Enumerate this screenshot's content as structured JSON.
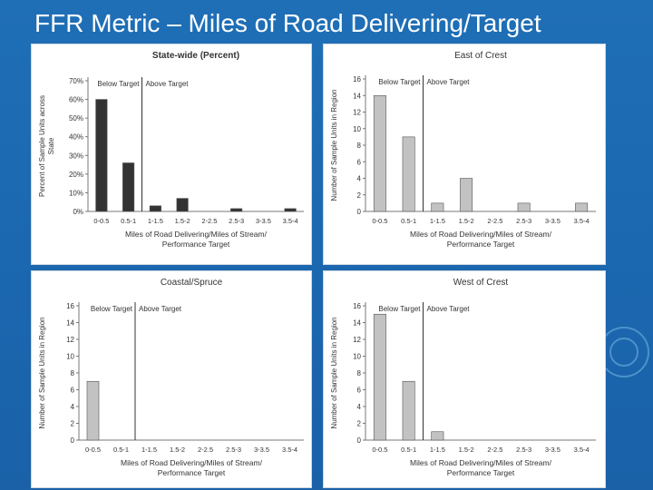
{
  "slide": {
    "title": "FFR Metric – Miles of Road Delivering/Target"
  },
  "colors": {
    "dark_bar": "#333333",
    "light_bar": "#c2c2c2",
    "target_line": "#333333",
    "background": "#1f6fb6"
  },
  "chart_data": [
    {
      "type": "bar",
      "title": "State-wide (Percent)",
      "xlabel": "Miles of Road Delivering/Miles of Stream/Performance Target",
      "ylabel": "Percent of Sample Units across State",
      "categories": [
        "0-0.5",
        "0.5-1",
        "1-1.5",
        "1.5-2",
        "2-2.5",
        "2.5-3",
        "3-3.5",
        "3.5-4"
      ],
      "values": [
        60,
        26,
        3,
        7,
        0,
        1.5,
        0,
        1.5
      ],
      "yticks": [
        "0%",
        "10%",
        "20%",
        "30%",
        "40%",
        "50%",
        "60%",
        "70%"
      ],
      "ylim": [
        0,
        70
      ],
      "target_labels": {
        "below": "Below Target",
        "above": "Above Target"
      },
      "bar_color": "#333333",
      "grid": false
    },
    {
      "type": "bar",
      "title": "East of Crest",
      "xlabel": "Miles of Road Delivering/Miles of Stream/Performance Target",
      "ylabel": "Number of Sample Units in Region",
      "categories": [
        "0-0.5",
        "0.5-1",
        "1-1.5",
        "1.5-2",
        "2-2.5",
        "2.5-3",
        "3-3.5",
        "3.5-4"
      ],
      "values": [
        14,
        9,
        1,
        4,
        0,
        1,
        0,
        1
      ],
      "yticks": [
        "0",
        "2",
        "4",
        "6",
        "8",
        "10",
        "12",
        "14",
        "16"
      ],
      "ylim": [
        0,
        16
      ],
      "target_labels": {
        "below": "Below Target",
        "above": "Above Target"
      },
      "bar_color": "#c2c2c2",
      "grid": false
    },
    {
      "type": "bar",
      "title": "Coastal/Spruce",
      "xlabel": "Miles of Road Delivering/Miles of Stream/Performance Target",
      "ylabel": "Number of Sample Units in Region",
      "categories": [
        "0-0.5",
        "0.5-1",
        "1-1.5",
        "1.5-2",
        "2-2.5",
        "2.5-3",
        "3-3.5",
        "3.5-4"
      ],
      "values": [
        7,
        0,
        0,
        0,
        0,
        0,
        0,
        0
      ],
      "yticks": [
        "0",
        "2",
        "4",
        "6",
        "8",
        "10",
        "12",
        "14",
        "16"
      ],
      "ylim": [
        0,
        16
      ],
      "target_labels": {
        "below": "Below Target",
        "above": "Above Target"
      },
      "bar_color": "#c2c2c2",
      "grid": false
    },
    {
      "type": "bar",
      "title": "West of Crest",
      "xlabel": "Miles of Road Delivering/Miles of Stream/Performance Target",
      "ylabel": "Number of Sample Units in Region",
      "categories": [
        "0-0.5",
        "0.5-1",
        "1-1.5",
        "1.5-2",
        "2-2.5",
        "2.5-3",
        "3-3.5",
        "3.5-4"
      ],
      "values": [
        15,
        7,
        1,
        0,
        0,
        0,
        0,
        0
      ],
      "yticks": [
        "0",
        "2",
        "4",
        "6",
        "8",
        "10",
        "12",
        "14",
        "16"
      ],
      "ylim": [
        0,
        16
      ],
      "target_labels": {
        "below": "Below Target",
        "above": "Above Target"
      },
      "bar_color": "#c2c2c2",
      "grid": false
    }
  ]
}
